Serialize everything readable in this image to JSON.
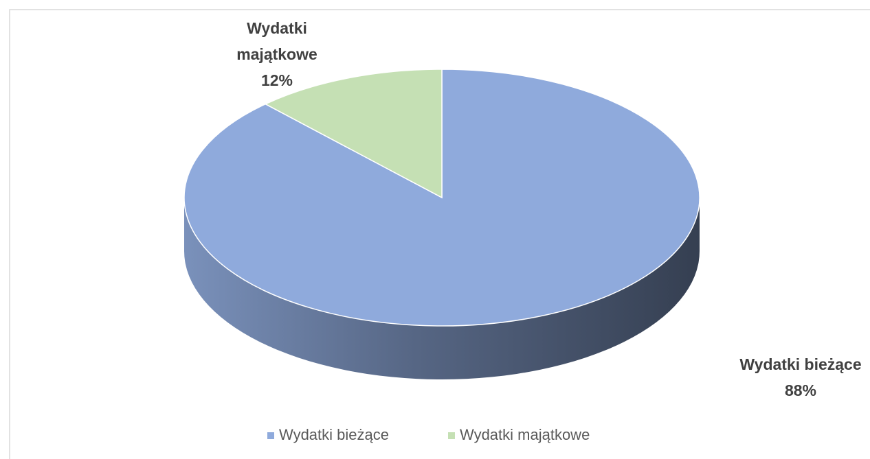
{
  "chart_data": {
    "type": "pie",
    "categories": [
      "Wydatki bieżące",
      "Wydatki majątkowe"
    ],
    "values": [
      88,
      12
    ],
    "value_labels": [
      "88%",
      "12%"
    ],
    "colors": [
      "#8faadc",
      "#c5e0b4"
    ],
    "legend": "bottom"
  }
}
